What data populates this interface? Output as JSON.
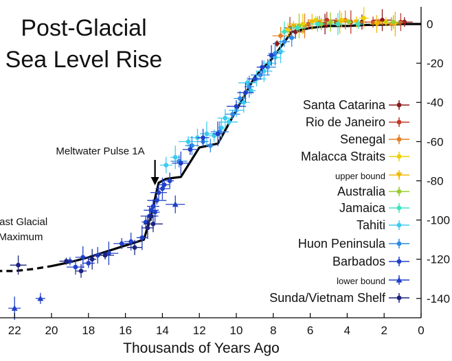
{
  "chart_data": {
    "type": "scatter",
    "title": [
      "Post-Glacial",
      "Sea Level Rise"
    ],
    "xlabel": "Thousands of Years Ago",
    "ylabel": "",
    "x_reversed": true,
    "xlim": [
      0,
      23
    ],
    "ylim": [
      -148,
      3
    ],
    "x_ticks": [
      22,
      20,
      18,
      16,
      14,
      12,
      10,
      8,
      6,
      4,
      2,
      0
    ],
    "y_ticks": [
      0,
      -20,
      -40,
      -60,
      -80,
      -100,
      -120,
      -140
    ],
    "x_tick_labels": [
      "22",
      "20",
      "18",
      "16",
      "14",
      "12",
      "10",
      "8",
      "6",
      "4",
      "2",
      "0"
    ],
    "y_tick_labels": [
      "0",
      "-20",
      "-40",
      "-60",
      "-80",
      "-100",
      "-120",
      "-140"
    ],
    "grid": false,
    "legend_position": "right",
    "annotations": [
      {
        "text": "Meltwater Pulse 1A",
        "x": 14.4,
        "y": -78,
        "arrow": true
      },
      {
        "text": [
          "Last Glacial",
          "Maximum"
        ],
        "x": 21.5,
        "y": -115
      }
    ],
    "curve": {
      "x": [
        23,
        22,
        21,
        20,
        19,
        18,
        17,
        16,
        15,
        14.6,
        14.2,
        13.8,
        13,
        12,
        11,
        10,
        9,
        8,
        7,
        6,
        5,
        4,
        3,
        2,
        1,
        0
      ],
      "y": [
        -126,
        -126,
        -125,
        -123.5,
        -121.5,
        -119,
        -116,
        -113,
        -110,
        -97,
        -81,
        -79,
        -78,
        -63,
        -61,
        -44,
        -27,
        -17,
        -4,
        -2,
        -1,
        -1,
        -0.5,
        -0.3,
        0,
        0
      ],
      "dashed_before": 19.5
    },
    "series": [
      {
        "name": "Santa Catarina",
        "color": "#8b1a1a",
        "marker": "dot",
        "points": [
          [
            7.8,
            -10
          ],
          [
            6.8,
            -4
          ],
          [
            5.2,
            0
          ],
          [
            4.6,
            1
          ],
          [
            3.2,
            1
          ],
          [
            2.1,
            2
          ],
          [
            0.9,
            1
          ]
        ]
      },
      {
        "name": "Rio de Janeiro",
        "color": "#c0392b",
        "marker": "dot",
        "points": [
          [
            7.1,
            -2
          ],
          [
            6.1,
            0
          ],
          [
            5.1,
            2
          ],
          [
            3.8,
            1
          ],
          [
            2.6,
            1
          ],
          [
            1.1,
            1
          ]
        ]
      },
      {
        "name": "Senegal",
        "color": "#e67e22",
        "marker": "dot",
        "points": [
          [
            7.6,
            -6
          ],
          [
            6.3,
            -1
          ],
          [
            5.5,
            1
          ],
          [
            4.1,
            2
          ],
          [
            2.3,
            1
          ],
          [
            1.6,
            0
          ]
        ]
      },
      {
        "name": "Malacca Straits",
        "color": "#f0d000",
        "marker": "dot",
        "points": [
          [
            7.2,
            -3
          ],
          [
            6.4,
            0
          ],
          [
            5.7,
            2
          ],
          [
            4.3,
            2
          ],
          [
            3.1,
            3
          ],
          [
            1.9,
            1
          ]
        ]
      },
      {
        "name": "upper bound",
        "color": "#f0b800",
        "marker": "tri-down",
        "points": [
          [
            6.9,
            -1
          ],
          [
            5.9,
            1
          ],
          [
            4.4,
            1
          ],
          [
            3.5,
            1
          ],
          [
            2.4,
            0
          ],
          [
            1.4,
            0
          ]
        ]
      },
      {
        "name": "Australia",
        "color": "#9acd32",
        "marker": "dot",
        "points": [
          [
            6.6,
            -1
          ],
          [
            5.4,
            0
          ],
          [
            4.9,
            1
          ],
          [
            3.9,
            1
          ],
          [
            1.5,
            1
          ]
        ]
      },
      {
        "name": "Jamaica",
        "color": "#40e0c0",
        "marker": "dot",
        "points": [
          [
            7.4,
            -4
          ],
          [
            6.7,
            -2
          ],
          [
            5.6,
            0
          ],
          [
            4.5,
            0
          ],
          [
            3.4,
            0
          ]
        ]
      },
      {
        "name": "Tahiti",
        "color": "#3ccbef",
        "marker": "dot",
        "points": [
          [
            13.8,
            -72
          ],
          [
            13.3,
            -68
          ],
          [
            12.6,
            -60
          ],
          [
            12.1,
            -58
          ],
          [
            11.6,
            -56
          ],
          [
            11.2,
            -57
          ],
          [
            10.8,
            -53
          ],
          [
            10.4,
            -50
          ],
          [
            10.0,
            -44
          ],
          [
            9.6,
            -40
          ],
          [
            9.2,
            -34
          ],
          [
            8.9,
            -28
          ],
          [
            8.5,
            -24
          ],
          [
            8.2,
            -20
          ],
          [
            7.9,
            -17
          ],
          [
            7.6,
            -14
          ],
          [
            9.4,
            -30
          ],
          [
            10.6,
            -48
          ]
        ]
      },
      {
        "name": "Huon Peninsula",
        "color": "#2e8be6",
        "marker": "dot",
        "points": [
          [
            13.1,
            -70
          ],
          [
            12.4,
            -62
          ],
          [
            11.8,
            -60
          ],
          [
            11.4,
            -62
          ],
          [
            10.9,
            -55
          ],
          [
            10.2,
            -46
          ],
          [
            9.8,
            -38
          ],
          [
            9.3,
            -32
          ],
          [
            8.7,
            -26
          ],
          [
            8.3,
            -22
          ],
          [
            7.9,
            -15
          ],
          [
            7.4,
            -9
          ],
          [
            7.0,
            -7
          ]
        ]
      },
      {
        "name": "Barbados",
        "color": "#2040c8",
        "marker": "dot",
        "points": [
          [
            19.0,
            -121
          ],
          [
            18.7,
            -124
          ],
          [
            18.3,
            -119
          ],
          [
            18.0,
            -122
          ],
          [
            17.5,
            -118
          ],
          [
            16.9,
            -117
          ],
          [
            16.2,
            -112
          ],
          [
            15.7,
            -111
          ],
          [
            15.1,
            -109
          ],
          [
            14.9,
            -101
          ],
          [
            14.7,
            -98
          ],
          [
            14.6,
            -95
          ],
          [
            14.5,
            -93
          ],
          [
            14.4,
            -96
          ],
          [
            14.3,
            -90
          ],
          [
            14.2,
            -86
          ],
          [
            14.0,
            -84
          ],
          [
            13.9,
            -82
          ],
          [
            13.6,
            -80
          ],
          [
            13.0,
            -71
          ],
          [
            12.5,
            -64
          ],
          [
            11.8,
            -58
          ],
          [
            11.0,
            -56
          ],
          [
            10.0,
            -42
          ],
          [
            9.5,
            -35
          ],
          [
            9.0,
            -28
          ],
          [
            8.6,
            -22
          ],
          [
            8.1,
            -16
          ]
        ]
      },
      {
        "name": "lower bound",
        "color": "#2040c8",
        "marker": "tri-up",
        "points": [
          [
            22.0,
            -145
          ],
          [
            20.6,
            -140
          ],
          [
            13.3,
            -92
          ]
        ]
      },
      {
        "name": "Sunda/Vietnam Shelf",
        "color": "#1a237e",
        "marker": "dot",
        "points": [
          [
            21.8,
            -123
          ],
          [
            19.2,
            -121
          ],
          [
            18.4,
            -126
          ],
          [
            17.8,
            -120
          ],
          [
            17.1,
            -118
          ],
          [
            15.5,
            -114
          ],
          [
            14.8,
            -104
          ],
          [
            14.6,
            -98
          ],
          [
            14.5,
            -102
          ]
        ]
      }
    ]
  }
}
